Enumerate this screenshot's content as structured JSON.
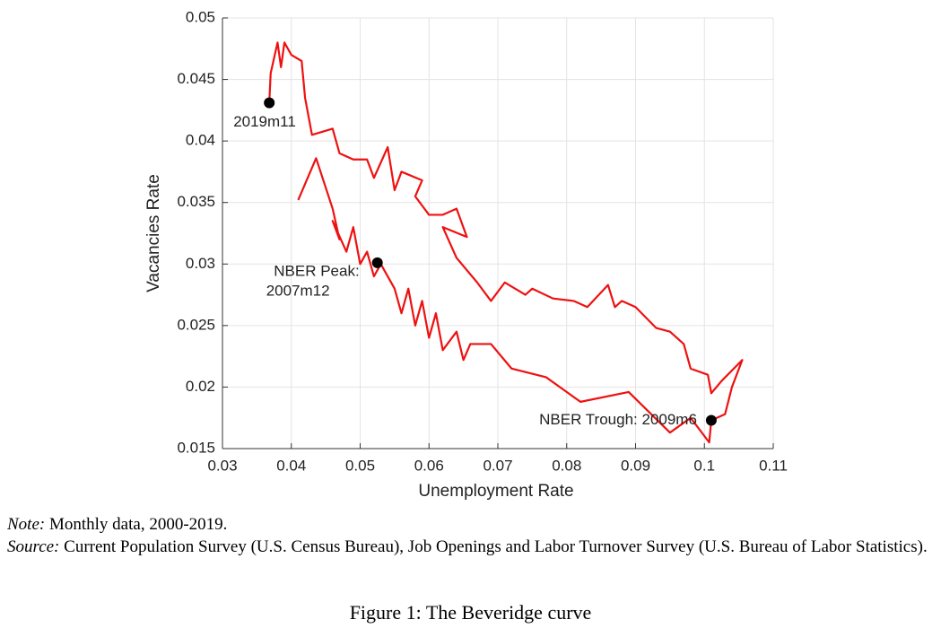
{
  "chart_data": {
    "type": "line",
    "x_label": "Unemployment Rate",
    "y_label": "Vacancies Rate",
    "xlim": [
      0.03,
      0.11
    ],
    "xticks": [
      0.03,
      0.04,
      0.05,
      0.06,
      0.07,
      0.08,
      0.09,
      0.1,
      0.11
    ],
    "ylim": [
      0.015,
      0.05
    ],
    "yticks": [
      0.015,
      0.02,
      0.025,
      0.03,
      0.035,
      0.04,
      0.045,
      0.05
    ],
    "grid": true,
    "series": [
      {
        "color": "#ee1111",
        "x": [
          0.041,
          0.0436,
          0.046,
          0.047,
          0.046,
          0.048,
          0.049,
          0.05,
          0.051,
          0.052,
          0.053,
          0.055,
          0.056,
          0.057,
          0.058,
          0.059,
          0.06,
          0.061,
          0.062,
          0.064,
          0.065,
          0.066,
          0.069,
          0.072,
          0.077,
          0.082,
          0.089,
          0.095,
          0.098,
          0.1007,
          0.101,
          0.103,
          0.104,
          0.1055,
          0.1025,
          0.101,
          0.1005,
          0.098,
          0.097,
          0.095,
          0.093,
          0.09,
          0.088,
          0.087,
          0.086,
          0.083,
          0.081,
          0.078,
          0.075,
          0.074,
          0.071,
          0.069,
          0.067,
          0.064,
          0.062,
          0.0655,
          0.064,
          0.062,
          0.06,
          0.058,
          0.059,
          0.056,
          0.055,
          0.054,
          0.052,
          0.051,
          0.049,
          0.047,
          0.046,
          0.043,
          0.042,
          0.0415,
          0.04,
          0.039,
          0.0385,
          0.038,
          0.037,
          0.0368
        ],
        "values": [
          0.0352,
          0.0386,
          0.0345,
          0.032,
          0.0335,
          0.031,
          0.033,
          0.03,
          0.031,
          0.029,
          0.03,
          0.028,
          0.026,
          0.028,
          0.025,
          0.027,
          0.024,
          0.026,
          0.023,
          0.0245,
          0.0222,
          0.0235,
          0.0235,
          0.0215,
          0.0208,
          0.0188,
          0.0196,
          0.0163,
          0.0175,
          0.0155,
          0.0173,
          0.0178,
          0.02,
          0.0222,
          0.0205,
          0.0195,
          0.021,
          0.0215,
          0.0235,
          0.0245,
          0.0248,
          0.0265,
          0.027,
          0.0265,
          0.0283,
          0.0265,
          0.027,
          0.0272,
          0.028,
          0.0275,
          0.0285,
          0.027,
          0.0285,
          0.0305,
          0.033,
          0.0322,
          0.0345,
          0.034,
          0.034,
          0.0355,
          0.0368,
          0.0375,
          0.036,
          0.0395,
          0.037,
          0.0385,
          0.0385,
          0.039,
          0.041,
          0.0405,
          0.0435,
          0.0465,
          0.047,
          0.048,
          0.046,
          0.048,
          0.0455,
          0.0431
        ]
      }
    ],
    "annotations": [
      {
        "lines": [
          "2019m11"
        ],
        "x": 0.0368,
        "y": 0.0431
      },
      {
        "lines": [
          "NBER Peak:",
          "2007m12"
        ],
        "x": 0.0525,
        "y": 0.0301
      },
      {
        "lines": [
          "NBER Trough: 2009m6"
        ],
        "x": 0.101,
        "y": 0.0173
      }
    ]
  },
  "note_label": "Note:",
  "note": "Monthly data, 2000-2019.",
  "source_label": "Source:",
  "source": "Current Population Survey (U.S. Census Bureau), Job Openings and Labor Turnover Survey (U.S. Bureau of Labor Statistics).",
  "caption": "Figure 1: The Beveridge curve"
}
